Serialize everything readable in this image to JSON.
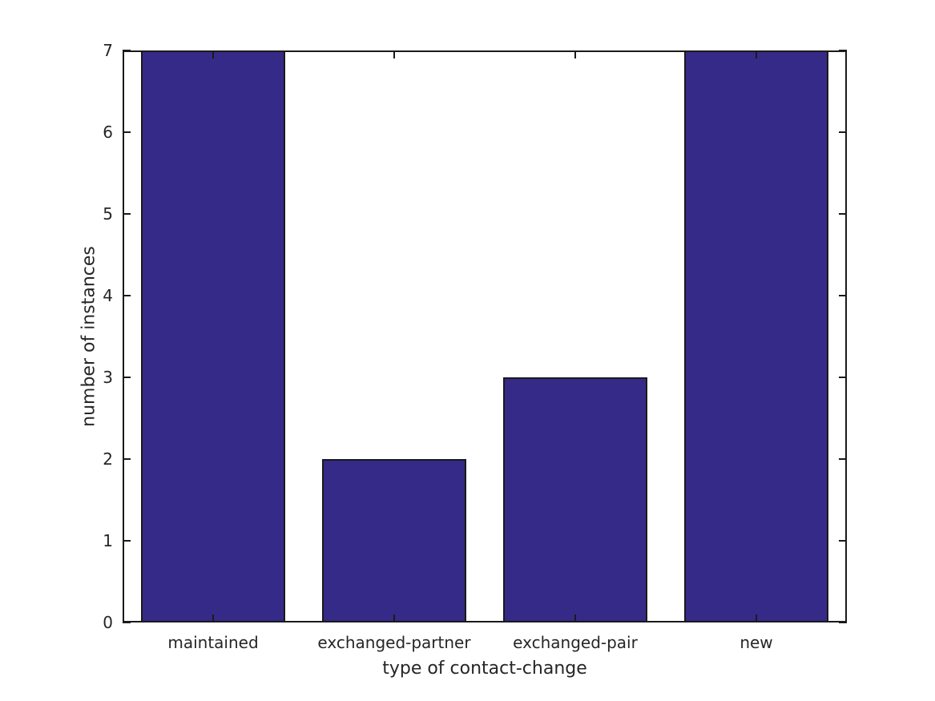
{
  "chart_data": {
    "type": "bar",
    "categories": [
      "maintained",
      "exchanged-partner",
      "exchanged-pair",
      "new"
    ],
    "values": [
      7,
      2,
      3,
      7
    ],
    "xlabel": "type of contact-change",
    "ylabel": "number of instances",
    "ylim": [
      0,
      7
    ],
    "yticks": [
      0,
      1,
      2,
      3,
      4,
      5,
      6,
      7
    ],
    "grid": false,
    "legend": null,
    "bar_width_fraction": 0.8,
    "colors": {
      "bar_fill": "#352A87",
      "bar_edge": "#1a1a1a",
      "axis": "#1a1a1a",
      "text": "#262626",
      "background": "#ffffff"
    }
  }
}
